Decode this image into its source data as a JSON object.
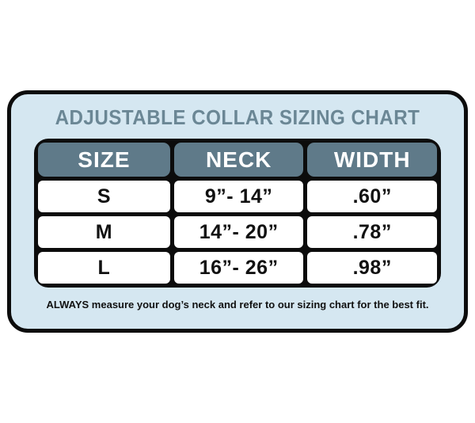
{
  "card": {
    "title": "ADJUSTABLE COLLAR SIZING CHART",
    "footnote": "ALWAYS measure your dog’s neck and refer to our sizing chart for the best fit."
  },
  "chart_data": {
    "type": "table",
    "title": "ADJUSTABLE COLLAR SIZING CHART",
    "columns": [
      "SIZE",
      "NECK",
      "WIDTH"
    ],
    "rows": [
      [
        "S",
        "9”- 14”",
        ".60”"
      ],
      [
        "M",
        "14”- 20”",
        ".78”"
      ],
      [
        "L",
        "16”- 26”",
        ".98”"
      ]
    ],
    "footnote": "ALWAYS measure your dog’s neck and refer to our sizing chart for the best fit.",
    "layout": {
      "grid": false,
      "legend": "none"
    }
  },
  "colors": {
    "page_background": "#ffffff",
    "card_background": "#d5e7f1",
    "border_black": "#0c0c0c",
    "header_background": "#5f7a89",
    "header_text": "#ffffff",
    "title_text": "#6b8795",
    "cell_background": "#ffffff",
    "data_text": "#111111"
  }
}
